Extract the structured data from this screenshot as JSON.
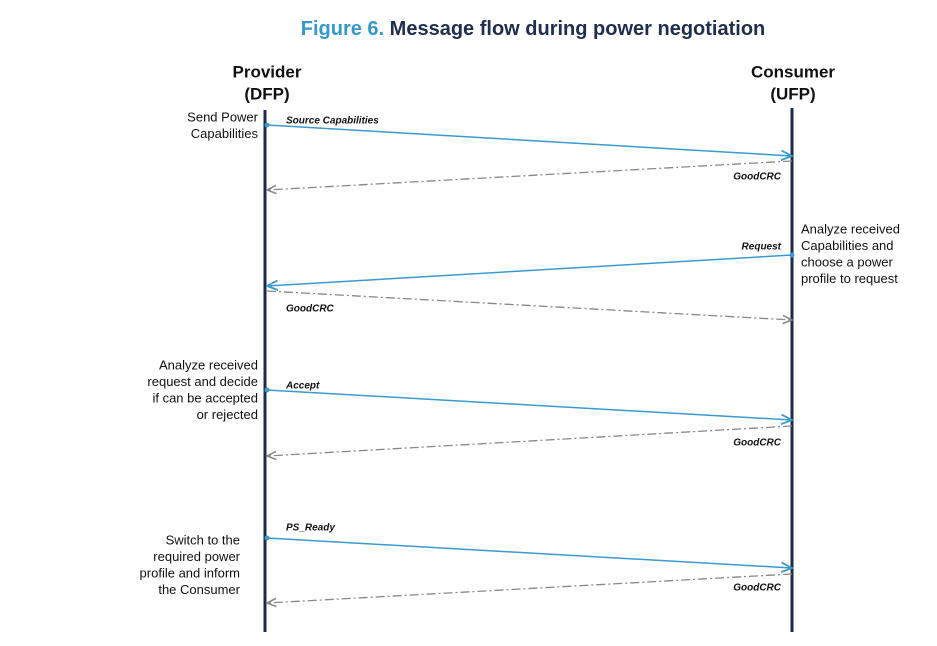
{
  "title": {
    "label": "Figure 6.",
    "text": "Message flow during power negotiation"
  },
  "lifelines": [
    {
      "name": "Provider",
      "role": "(DFP)"
    },
    {
      "name": "Consumer",
      "role": "(UFP)"
    }
  ],
  "messages": [
    "Source Capabilities",
    "GoodCRC",
    "Request",
    "GoodCRC",
    "Accept",
    "GoodCRC",
    "PS_Ready",
    "GoodCRC"
  ],
  "notes": [
    [
      "Send Power",
      "Capabilities"
    ],
    [
      "Analyze received",
      "Capabilities and",
      "choose a power",
      "profile to request"
    ],
    [
      "Analyze received",
      "request and decide",
      "if can be accepted",
      "or rejected"
    ],
    [
      "Switch to the",
      "required power",
      "profile and inform",
      "the Consumer"
    ]
  ]
}
